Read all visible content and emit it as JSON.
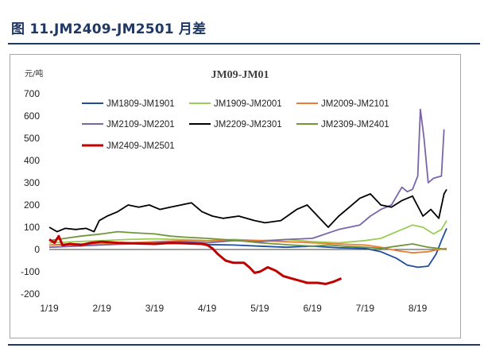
{
  "header": {
    "title": "图 11.JM2409-JM2501 月差"
  },
  "chart_data": {
    "type": "line",
    "title": "JM09-JM01",
    "ylabel": "元/吨",
    "xlabel": "",
    "ylim": [
      -200,
      700
    ],
    "yticks": [
      -200,
      -100,
      0,
      100,
      200,
      300,
      400,
      500,
      600,
      700
    ],
    "xlim": [
      1,
      8.55
    ],
    "xticks": [
      {
        "label": "1/19",
        "value": 1
      },
      {
        "label": "2/19",
        "value": 2
      },
      {
        "label": "3/19",
        "value": 3
      },
      {
        "label": "4/19",
        "value": 4
      },
      {
        "label": "5/19",
        "value": 5
      },
      {
        "label": "6/19",
        "value": 6
      },
      {
        "label": "7/19",
        "value": 7
      },
      {
        "label": "8/19",
        "value": 8
      }
    ],
    "grid": false,
    "legend_position": "top",
    "series": [
      {
        "name": "JM1809-JM1901",
        "color": "#1f4e9c",
        "points": [
          [
            1,
            20
          ],
          [
            1.5,
            25
          ],
          [
            2,
            22
          ],
          [
            2.5,
            30
          ],
          [
            3,
            25
          ],
          [
            3.5,
            28
          ],
          [
            4,
            22
          ],
          [
            4.5,
            20
          ],
          [
            5,
            15
          ],
          [
            5.5,
            10
          ],
          [
            6,
            15
          ],
          [
            6.5,
            8
          ],
          [
            7,
            5
          ],
          [
            7.3,
            -10
          ],
          [
            7.6,
            -40
          ],
          [
            7.8,
            -70
          ],
          [
            8,
            -80
          ],
          [
            8.2,
            -75
          ],
          [
            8.35,
            -20
          ],
          [
            8.45,
            40
          ],
          [
            8.55,
            95
          ]
        ]
      },
      {
        "name": "JM1909-JM2001",
        "color": "#9acd56",
        "points": [
          [
            1,
            30
          ],
          [
            1.5,
            35
          ],
          [
            2,
            40
          ],
          [
            2.5,
            45
          ],
          [
            3,
            48
          ],
          [
            3.5,
            45
          ],
          [
            4,
            40
          ],
          [
            4.5,
            45
          ],
          [
            5,
            40
          ],
          [
            5.5,
            45
          ],
          [
            6,
            35
          ],
          [
            6.5,
            30
          ],
          [
            7,
            40
          ],
          [
            7.3,
            50
          ],
          [
            7.6,
            80
          ],
          [
            7.9,
            110
          ],
          [
            8.1,
            100
          ],
          [
            8.3,
            70
          ],
          [
            8.45,
            90
          ],
          [
            8.55,
            130
          ]
        ]
      },
      {
        "name": "JM2009-JM2101",
        "color": "#ed7d31",
        "points": [
          [
            1,
            20
          ],
          [
            1.5,
            22
          ],
          [
            2,
            25
          ],
          [
            2.5,
            30
          ],
          [
            3,
            35
          ],
          [
            3.5,
            40
          ],
          [
            4,
            38
          ],
          [
            4.5,
            42
          ],
          [
            5,
            40
          ],
          [
            5.5,
            35
          ],
          [
            6,
            30
          ],
          [
            6.5,
            25
          ],
          [
            7,
            20
          ],
          [
            7.3,
            10
          ],
          [
            7.6,
            -5
          ],
          [
            7.9,
            -15
          ],
          [
            8.2,
            -10
          ],
          [
            8.4,
            0
          ],
          [
            8.55,
            5
          ]
        ]
      },
      {
        "name": "JM2109-JM2201",
        "color": "#7b64a8",
        "points": [
          [
            1,
            10
          ],
          [
            1.5,
            15
          ],
          [
            2,
            20
          ],
          [
            2.5,
            25
          ],
          [
            3,
            30
          ],
          [
            3.5,
            35
          ],
          [
            4,
            30
          ],
          [
            4.5,
            40
          ],
          [
            5,
            35
          ],
          [
            5.5,
            45
          ],
          [
            6,
            50
          ],
          [
            6.5,
            90
          ],
          [
            6.9,
            110
          ],
          [
            7.1,
            150
          ],
          [
            7.3,
            180
          ],
          [
            7.5,
            200
          ],
          [
            7.7,
            280
          ],
          [
            7.8,
            260
          ],
          [
            7.9,
            270
          ],
          [
            8,
            330
          ],
          [
            8.05,
            630
          ],
          [
            8.12,
            500
          ],
          [
            8.2,
            300
          ],
          [
            8.3,
            320
          ],
          [
            8.45,
            330
          ],
          [
            8.5,
            540
          ]
        ]
      },
      {
        "name": "JM2209-JM2301",
        "color": "#000000",
        "points": [
          [
            1,
            100
          ],
          [
            1.15,
            80
          ],
          [
            1.3,
            95
          ],
          [
            1.5,
            90
          ],
          [
            1.7,
            95
          ],
          [
            1.85,
            80
          ],
          [
            1.95,
            130
          ],
          [
            2.1,
            150
          ],
          [
            2.3,
            170
          ],
          [
            2.5,
            200
          ],
          [
            2.7,
            190
          ],
          [
            2.9,
            200
          ],
          [
            3.1,
            180
          ],
          [
            3.3,
            190
          ],
          [
            3.5,
            200
          ],
          [
            3.7,
            210
          ],
          [
            3.9,
            170
          ],
          [
            4.1,
            150
          ],
          [
            4.3,
            140
          ],
          [
            4.6,
            150
          ],
          [
            4.9,
            130
          ],
          [
            5.1,
            120
          ],
          [
            5.4,
            130
          ],
          [
            5.7,
            180
          ],
          [
            5.9,
            200
          ],
          [
            6.1,
            150
          ],
          [
            6.3,
            100
          ],
          [
            6.5,
            150
          ],
          [
            6.7,
            190
          ],
          [
            6.9,
            230
          ],
          [
            7.1,
            250
          ],
          [
            7.3,
            200
          ],
          [
            7.5,
            190
          ],
          [
            7.7,
            220
          ],
          [
            7.9,
            240
          ],
          [
            8.1,
            150
          ],
          [
            8.25,
            180
          ],
          [
            8.4,
            140
          ],
          [
            8.5,
            250
          ],
          [
            8.55,
            270
          ]
        ]
      },
      {
        "name": "JM2309-JM2401",
        "color": "#70963c",
        "points": [
          [
            1,
            40
          ],
          [
            1.3,
            50
          ],
          [
            1.6,
            60
          ],
          [
            2,
            70
          ],
          [
            2.3,
            80
          ],
          [
            2.6,
            75
          ],
          [
            3,
            70
          ],
          [
            3.3,
            60
          ],
          [
            3.6,
            55
          ],
          [
            4,
            50
          ],
          [
            4.3,
            45
          ],
          [
            4.6,
            40
          ],
          [
            5,
            30
          ],
          [
            5.3,
            25
          ],
          [
            5.6,
            20
          ],
          [
            6,
            15
          ],
          [
            6.3,
            20
          ],
          [
            6.6,
            15
          ],
          [
            7,
            10
          ],
          [
            7.3,
            5
          ],
          [
            7.6,
            15
          ],
          [
            7.9,
            25
          ],
          [
            8.2,
            10
          ],
          [
            8.4,
            5
          ],
          [
            8.55,
            0
          ]
        ]
      },
      {
        "name": "JM2409-JM2501",
        "color": "#c00000",
        "bold": true,
        "points": [
          [
            1,
            45
          ],
          [
            1.1,
            30
          ],
          [
            1.18,
            60
          ],
          [
            1.25,
            20
          ],
          [
            1.4,
            25
          ],
          [
            1.6,
            20
          ],
          [
            1.8,
            30
          ],
          [
            2,
            35
          ],
          [
            2.3,
            30
          ],
          [
            2.6,
            28
          ],
          [
            3,
            25
          ],
          [
            3.3,
            30
          ],
          [
            3.6,
            28
          ],
          [
            3.9,
            25
          ],
          [
            4,
            20
          ],
          [
            4.1,
            5
          ],
          [
            4.2,
            -20
          ],
          [
            4.35,
            -50
          ],
          [
            4.5,
            -60
          ],
          [
            4.7,
            -60
          ],
          [
            4.8,
            -80
          ],
          [
            4.9,
            -105
          ],
          [
            5,
            -100
          ],
          [
            5.15,
            -80
          ],
          [
            5.3,
            -95
          ],
          [
            5.45,
            -120
          ],
          [
            5.6,
            -130
          ],
          [
            5.75,
            -140
          ],
          [
            5.9,
            -150
          ],
          [
            6.1,
            -150
          ],
          [
            6.25,
            -155
          ],
          [
            6.4,
            -145
          ],
          [
            6.55,
            -130
          ]
        ]
      }
    ]
  }
}
